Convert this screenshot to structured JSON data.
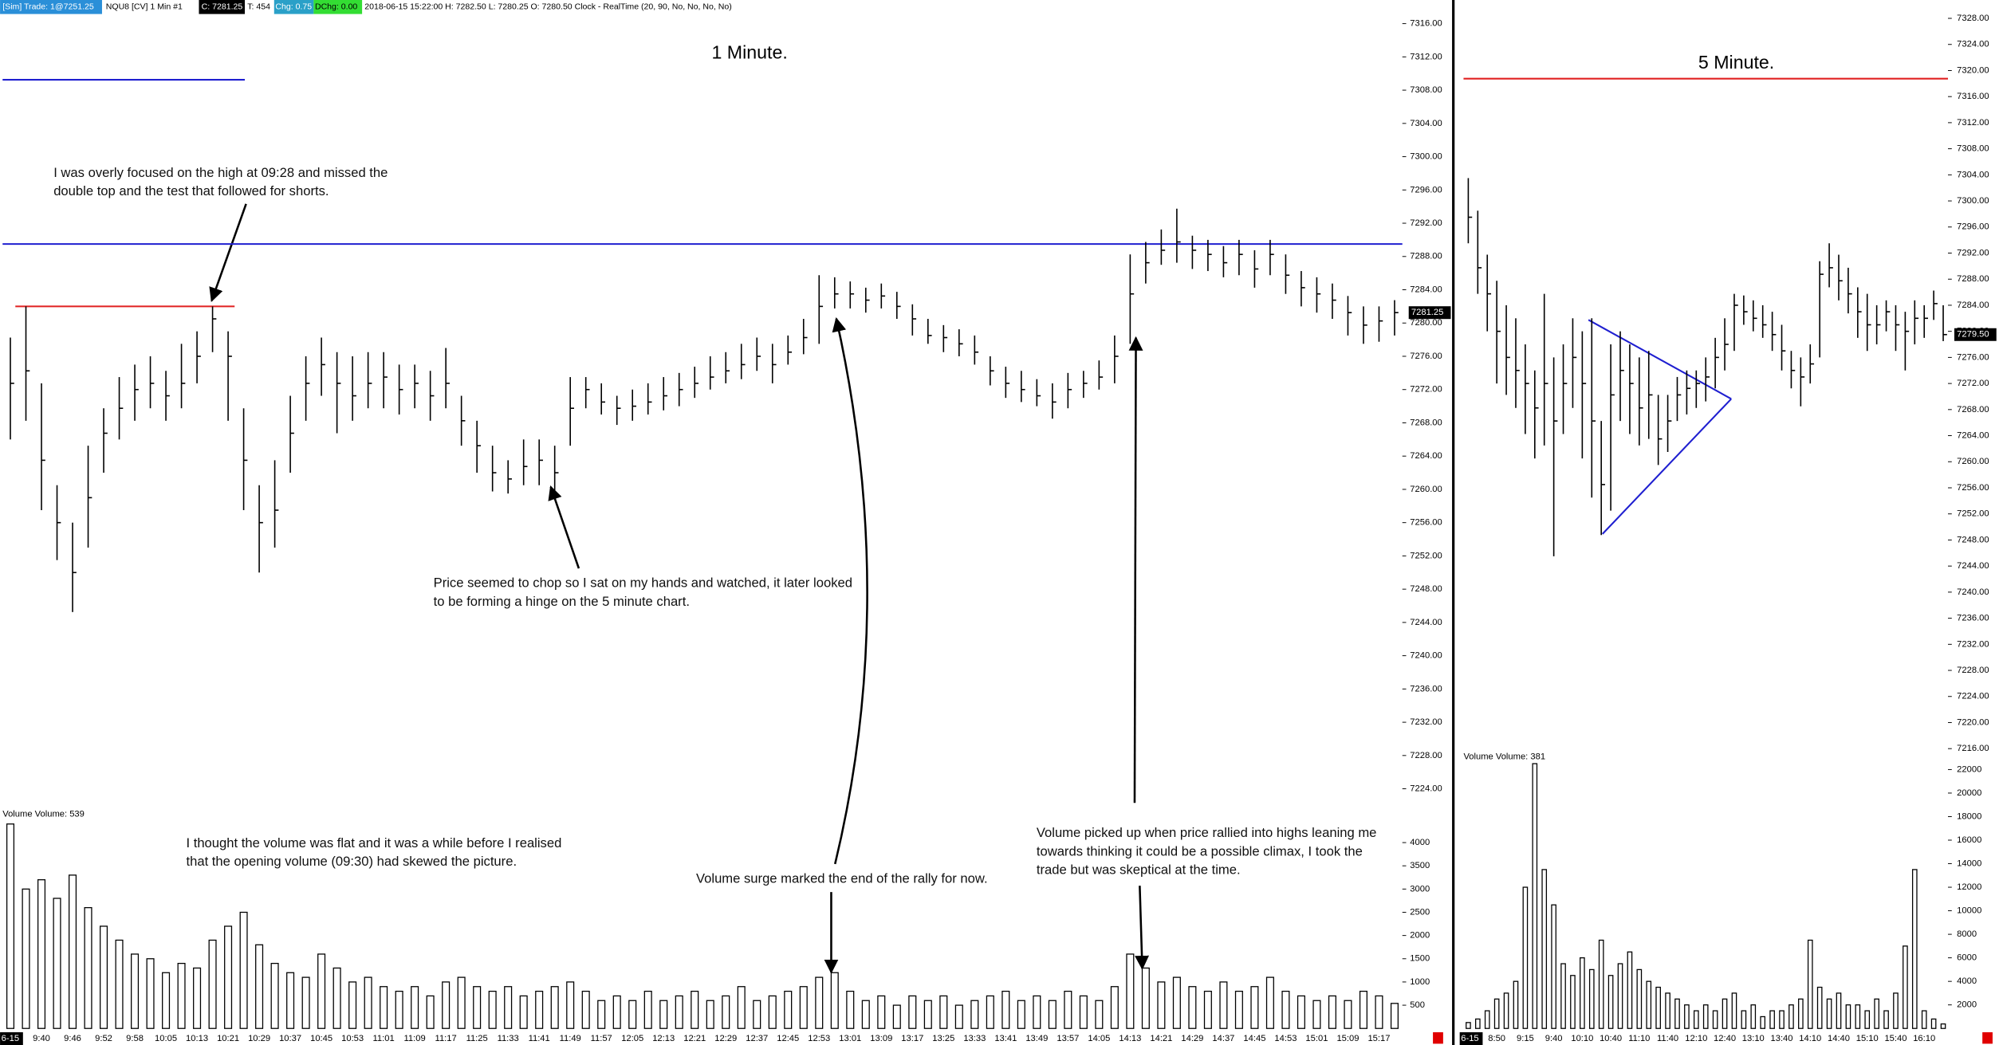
{
  "status_bar": {
    "sim": "[Sim]  Trade: 1@7251.25",
    "instrument": "NQU8 [CV]  1 Min   #1",
    "close": "C: 7281.25",
    "ticks": "T: 454",
    "chg": "Chg: 0.75",
    "dchg": "DChg: 0.00",
    "info": "2018-06-15 15:22:00 H: 7282.50 L: 7280.25 O: 7280.50 Clock - RealTime   (20, 90, No, No, No, No)"
  },
  "chart_data": [
    {
      "type": "ohlc",
      "title": "1 Minute.",
      "date_label": "6-15",
      "color": "#000000",
      "categories": [
        null,
        null,
        "9:40",
        null,
        "9:46",
        null,
        "9:52",
        null,
        "9:58",
        null,
        "10:05",
        null,
        "10:13",
        null,
        "10:21",
        null,
        "10:29",
        null,
        "10:37",
        null,
        "10:45",
        null,
        "10:53",
        null,
        "11:01",
        null,
        "11:09",
        null,
        "11:17",
        null,
        "11:25",
        null,
        "11:33",
        null,
        "11:41",
        null,
        "11:49",
        null,
        "11:57",
        null,
        "12:05",
        null,
        "12:13",
        null,
        "12:21",
        null,
        "12:29",
        null,
        "12:37",
        null,
        "12:45",
        null,
        "12:53",
        null,
        "13:01",
        null,
        "13:09",
        null,
        "13:17",
        null,
        "13:25",
        null,
        "13:33",
        null,
        "13:41",
        null,
        "13:49",
        null,
        "13:57",
        null,
        "14:05",
        null,
        "14:13",
        null,
        "14:21",
        null,
        "14:29",
        null,
        "14:37",
        null,
        "14:45",
        null,
        "14:53",
        null,
        "15:01",
        null,
        "15:09",
        null,
        "15:17",
        null
      ],
      "high": [
        7278.25,
        7282,
        7272.75,
        7260.5,
        7256,
        7265.25,
        7269.75,
        7273.5,
        7275,
        7276,
        7274.25,
        7277.5,
        7279,
        7282,
        7279,
        7269.75,
        7260.5,
        7263.5,
        7271.25,
        7276,
        7278.25,
        7276.5,
        7276,
        7276.5,
        7276.5,
        7275,
        7275,
        7274.25,
        7277,
        7271.25,
        7268.25,
        7265.25,
        7263.5,
        7266,
        7266,
        7265.25,
        7273.5,
        7273.5,
        7272.75,
        7271.25,
        7272,
        7272.75,
        7273.5,
        7274,
        7274.75,
        7276,
        7276.5,
        7277.5,
        7278.25,
        7277.5,
        7278.5,
        7280.5,
        7285.75,
        7285.5,
        7285,
        7284.25,
        7284.75,
        7283.75,
        7282.25,
        7280.5,
        7279.75,
        7279.25,
        7278.5,
        7276,
        7274.75,
        7274.25,
        7273.25,
        7272.75,
        7274,
        7274.25,
        7275.5,
        7278.5,
        7288.25,
        7289.75,
        7291.25,
        7293.75,
        7290.5,
        7290,
        7289.25,
        7290,
        7288.75,
        7290,
        7288.25,
        7286.25,
        7285.5,
        7284.75,
        7283.25,
        7282,
        7282,
        7282.75
      ],
      "low": [
        7266,
        7268.25,
        7257.5,
        7251.5,
        7245.25,
        7253,
        7262,
        7266,
        7268.25,
        7269.75,
        7268.25,
        7269.75,
        7272.75,
        7276.5,
        7268.25,
        7257.5,
        7250,
        7253,
        7262,
        7268.25,
        7271.25,
        7266.75,
        7268.25,
        7269.75,
        7269.75,
        7269,
        7269.75,
        7268.25,
        7269.75,
        7265.25,
        7262,
        7259.75,
        7259.5,
        7260.5,
        7260.5,
        7259.75,
        7265.25,
        7269.75,
        7269,
        7267.75,
        7268.25,
        7269,
        7269.5,
        7270,
        7271,
        7272,
        7272.75,
        7273.25,
        7274.25,
        7272.75,
        7275,
        7276.25,
        7277.5,
        7281.75,
        7281.75,
        7281.25,
        7281.75,
        7280.5,
        7278.5,
        7277.5,
        7276.5,
        7276,
        7275,
        7272.5,
        7271,
        7270.5,
        7270,
        7268.5,
        7269.75,
        7271,
        7272,
        7272.75,
        7277.5,
        7284.75,
        7287,
        7287.25,
        7286.5,
        7286.25,
        7285.5,
        7285.75,
        7284.25,
        7285.75,
        7283.5,
        7282,
        7281.25,
        7280.5,
        7278.5,
        7277.5,
        7277.75,
        7278.5
      ],
      "close": [
        7272.75,
        7274.25,
        7263.5,
        7256,
        7250,
        7259,
        7266.75,
        7269.75,
        7272,
        7272.75,
        7271.25,
        7272.75,
        7276,
        7280.5,
        7276,
        7263.5,
        7256,
        7257.5,
        7266.75,
        7272.75,
        7275,
        7272.75,
        7271.25,
        7272.75,
        7273.5,
        7272,
        7272.75,
        7271.25,
        7272.75,
        7268.25,
        7265.25,
        7262,
        7261.25,
        7262.75,
        7263.5,
        7262,
        7269.75,
        7272,
        7270.5,
        7269.75,
        7270,
        7270.5,
        7271.25,
        7272,
        7272.75,
        7273.5,
        7274.25,
        7275,
        7276,
        7275,
        7276.5,
        7278.25,
        7282,
        7283.5,
        7283.5,
        7282.75,
        7283.25,
        7282,
        7280.5,
        7278.5,
        7278.25,
        7277.5,
        7276.5,
        7274.25,
        7272.75,
        7272,
        7271.25,
        7270.5,
        7272,
        7272.75,
        7273.5,
        7276,
        7283.5,
        7287.25,
        7288.75,
        7289.75,
        7288.75,
        7288.25,
        7287.25,
        7288.25,
        7286.5,
        7288.25,
        7285.75,
        7284.25,
        7283.5,
        7282.75,
        7281.25,
        7279.75,
        7280.25,
        7281.25
      ],
      "last_price_label": "7281.25",
      "ylim": [
        7222,
        7317
      ],
      "yticks": [
        {
          "value": 7224,
          "label": "7224.00"
        },
        {
          "value": 7228,
          "label": "7228.00"
        },
        {
          "value": 7232,
          "label": "7232.00"
        },
        {
          "value": 7236,
          "label": "7236.00"
        },
        {
          "value": 7240,
          "label": "7240.00"
        },
        {
          "value": 7244,
          "label": "7244.00"
        },
        {
          "value": 7248,
          "label": "7248.00"
        },
        {
          "value": 7252,
          "label": "7252.00"
        },
        {
          "value": 7256,
          "label": "7256.00"
        },
        {
          "value": 7260,
          "label": "7260.00"
        },
        {
          "value": 7264,
          "label": "7264.00"
        },
        {
          "value": 7268,
          "label": "7268.00"
        },
        {
          "value": 7272,
          "label": "7272.00"
        },
        {
          "value": 7276,
          "label": "7276.00"
        },
        {
          "value": 7280,
          "label": "7280.00"
        },
        {
          "value": 7284,
          "label": "7284.00"
        },
        {
          "value": 7288,
          "label": "7288.00"
        },
        {
          "value": 7292,
          "label": "7292.00"
        },
        {
          "value": 7296,
          "label": "7296.00"
        },
        {
          "value": 7300,
          "label": "7300.00"
        },
        {
          "value": 7304,
          "label": "7304.00"
        },
        {
          "value": 7308,
          "label": "7308.00"
        },
        {
          "value": 7312,
          "label": "7312.00"
        },
        {
          "value": 7316,
          "label": "7316.00"
        }
      ],
      "levels": [
        {
          "value": 7309.25,
          "color": "#1f1fd0"
        },
        {
          "value": 7289.5,
          "color": "#1f1fd0"
        },
        {
          "value": 7282,
          "color": "#e02020"
        }
      ],
      "volume": {
        "legend": "Volume  Volume: 539",
        "color": "#000000",
        "values": [
          4400,
          3000,
          3200,
          2800,
          3300,
          2600,
          2200,
          1900,
          1600,
          1500,
          1200,
          1400,
          1300,
          1900,
          2200,
          2500,
          1800,
          1400,
          1200,
          1100,
          1600,
          1300,
          1000,
          1100,
          900,
          800,
          900,
          700,
          1000,
          1100,
          900,
          800,
          900,
          700,
          800,
          900,
          1000,
          800,
          600,
          700,
          600,
          800,
          600,
          700,
          800,
          600,
          700,
          900,
          600,
          700,
          800,
          900,
          1100,
          1200,
          800,
          600,
          700,
          500,
          700,
          600,
          700,
          500,
          600,
          700,
          800,
          600,
          700,
          600,
          800,
          700,
          600,
          900,
          1600,
          1300,
          1000,
          1100,
          900,
          800,
          1000,
          800,
          900,
          1100,
          800,
          700,
          600,
          700,
          600,
          800,
          700,
          539
        ],
        "ylim": [
          0,
          4800
        ],
        "yticks": [
          500,
          1000,
          1500,
          2000,
          2500,
          3000,
          3500,
          4000
        ]
      }
    },
    {
      "type": "ohlc",
      "title": "5 Minute.",
      "date_label": "6-15",
      "color": "#000000",
      "categories": [
        null,
        null,
        null,
        "8:50",
        null,
        null,
        "9:15",
        null,
        null,
        "9:40",
        null,
        null,
        "10:10",
        null,
        null,
        "10:40",
        null,
        null,
        "11:10",
        null,
        null,
        "11:40",
        null,
        null,
        "12:10",
        null,
        null,
        "12:40",
        null,
        null,
        "13:10",
        null,
        null,
        "13:40",
        null,
        null,
        "14:10",
        null,
        null,
        "14:40",
        null,
        null,
        "15:10",
        null,
        null,
        "15:40",
        null,
        null,
        "16:10",
        null,
        null
      ],
      "high": [
        7303.5,
        7298.5,
        7291.75,
        7287.75,
        7284,
        7282,
        7278,
        7274,
        7285.75,
        7276,
        7278,
        7282,
        7280,
        7282,
        7266.25,
        7278,
        7280,
        7278,
        7276,
        7277,
        7270.25,
        7270.25,
        7273,
        7274,
        7274,
        7276,
        7279,
        7282,
        7285.75,
        7285.5,
        7284.75,
        7284,
        7283,
        7281,
        7277,
        7276,
        7278,
        7290.75,
        7293.5,
        7291.75,
        7289.75,
        7286.75,
        7285.75,
        7284,
        7284.75,
        7284,
        7283,
        7284.75,
        7284,
        7286.25,
        7284
      ],
      "low": [
        7293.5,
        7285.75,
        7280,
        7272,
        7270.25,
        7268.25,
        7264.25,
        7260.5,
        7262.5,
        7245.5,
        7264.25,
        7268.25,
        7260.5,
        7254.5,
        7248.75,
        7252.5,
        7266.25,
        7264.25,
        7262.5,
        7263.5,
        7259.5,
        7261.5,
        7266.25,
        7267.25,
        7268.25,
        7269.25,
        7271.25,
        7274,
        7277,
        7281,
        7280,
        7279,
        7277,
        7274,
        7271.25,
        7268.5,
        7272,
        7276,
        7286.75,
        7284.75,
        7282.75,
        7279,
        7277,
        7278,
        7280,
        7277,
        7274,
        7278,
        7279,
        7281.75,
        7278.5
      ],
      "close": [
        7297.5,
        7289.75,
        7285.75,
        7280,
        7276,
        7274,
        7272,
        7268.25,
        7272,
        7266.25,
        7272,
        7276,
        7272,
        7266.25,
        7256.5,
        7270.25,
        7274,
        7272,
        7268.25,
        7270.25,
        7263.5,
        7266.25,
        7270.25,
        7271.25,
        7272,
        7273,
        7276,
        7278,
        7284,
        7283,
        7282,
        7281,
        7279.5,
        7277,
        7274,
        7273,
        7275,
        7288.75,
        7289.75,
        7287.75,
        7285.75,
        7283,
        7281,
        7281,
        7283,
        7281,
        7280,
        7282,
        7282,
        7284.25,
        7279.5
      ],
      "last_price_label": "7279.50",
      "ylim": [
        7215.5,
        7329.25
      ],
      "yticks": [
        {
          "value": 7216,
          "label": "7216.00"
        },
        {
          "value": 7220,
          "label": "7220.00"
        },
        {
          "value": 7224,
          "label": "7224.00"
        },
        {
          "value": 7228,
          "label": "7228.00"
        },
        {
          "value": 7232,
          "label": "7232.00"
        },
        {
          "value": 7236,
          "label": "7236.00"
        },
        {
          "value": 7240,
          "label": "7240.00"
        },
        {
          "value": 7244,
          "label": "7244.00"
        },
        {
          "value": 7248,
          "label": "7248.00"
        },
        {
          "value": 7252,
          "label": "7252.00"
        },
        {
          "value": 7256,
          "label": "7256.00"
        },
        {
          "value": 7260,
          "label": "7260.00"
        },
        {
          "value": 7264,
          "label": "7264.00"
        },
        {
          "value": 7268,
          "label": "7268.00"
        },
        {
          "value": 7272,
          "label": "7272.00"
        },
        {
          "value": 7276,
          "label": "7276.00"
        },
        {
          "value": 7280,
          "label": "7280.00"
        },
        {
          "value": 7284,
          "label": "7284.00"
        },
        {
          "value": 7288,
          "label": "7288.00"
        },
        {
          "value": 7292,
          "label": "7292.00"
        },
        {
          "value": 7296,
          "label": "7296.00"
        },
        {
          "value": 7300,
          "label": "7300.00"
        },
        {
          "value": 7304,
          "label": "7304.00"
        },
        {
          "value": 7308,
          "label": "7308.00"
        },
        {
          "value": 7312,
          "label": "7312.00"
        },
        {
          "value": 7316,
          "label": "7316.00"
        },
        {
          "value": 7320,
          "label": "7320.00"
        },
        {
          "value": 7324,
          "label": "7324.00"
        },
        {
          "value": 7328,
          "label": "7328.00"
        }
      ],
      "levels": [
        {
          "value": 7318.75,
          "color": "#e02020"
        }
      ],
      "volume": {
        "legend": "Volume  Volume: 381",
        "color": "#000000",
        "values": [
          500,
          800,
          1500,
          2500,
          3000,
          4000,
          12000,
          22500,
          13500,
          10500,
          5500,
          4500,
          6000,
          5000,
          7500,
          4500,
          5500,
          6500,
          5000,
          4000,
          3500,
          3000,
          2500,
          2000,
          1500,
          2000,
          1500,
          2500,
          3000,
          1500,
          2000,
          1000,
          1500,
          1500,
          2000,
          2500,
          7500,
          3500,
          2500,
          3000,
          2000,
          2000,
          1500,
          2500,
          1500,
          3000,
          7000,
          13500,
          1500,
          800,
          381
        ],
        "ylim": [
          0,
          23500
        ],
        "yticks": [
          2000,
          4000,
          6000,
          8000,
          10000,
          12000,
          14000,
          16000,
          18000,
          20000,
          22000
        ]
      }
    }
  ],
  "annotations": [
    {
      "lines": [
        "I was overly focused on the high at 09:28 and missed the",
        "double top and the test that followed for shorts."
      ]
    },
    {
      "lines": [
        "Price seemed to chop so I sat on my hands and watched, it later looked",
        "to be forming a hinge on the 5 minute chart."
      ]
    },
    {
      "lines": [
        "I thought the volume was flat and it was a while before I realised",
        "that the opening volume (09:30) had skewed the picture."
      ]
    },
    {
      "lines": [
        "Volume surge marked the end of the rally for now."
      ]
    },
    {
      "lines": [
        "Volume picked up when price rallied into highs leaning me",
        "towards thinking it could be a possible climax, I took the",
        "trade but was skeptical at the time."
      ]
    }
  ]
}
